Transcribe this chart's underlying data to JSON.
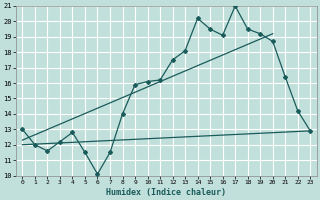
{
  "title": "",
  "xlabel": "Humidex (Indice chaleur)",
  "xlim": [
    -0.5,
    23.5
  ],
  "ylim": [
    10,
    21
  ],
  "xticks": [
    0,
    1,
    2,
    3,
    4,
    5,
    6,
    7,
    8,
    9,
    10,
    11,
    12,
    13,
    14,
    15,
    16,
    17,
    18,
    19,
    20,
    21,
    22,
    23
  ],
  "yticks": [
    10,
    11,
    12,
    13,
    14,
    15,
    16,
    17,
    18,
    19,
    20,
    21
  ],
  "bg_color": "#c2e0db",
  "grid_color": "#ffffff",
  "line_color": "#1a5c5c",
  "series1_x": [
    0,
    1,
    2,
    3,
    4,
    5,
    6,
    7,
    8,
    9,
    10,
    11,
    12,
    13,
    14,
    15,
    16,
    17,
    18,
    19,
    20,
    21,
    22,
    23
  ],
  "series1_y": [
    13.0,
    12.0,
    11.6,
    12.2,
    12.8,
    11.5,
    10.1,
    11.5,
    14.0,
    15.9,
    16.1,
    16.2,
    17.5,
    18.1,
    20.2,
    19.5,
    19.1,
    21.0,
    19.5,
    19.2,
    18.7,
    16.4,
    14.2,
    12.9
  ],
  "series2_x": [
    0,
    23
  ],
  "series2_y": [
    12.0,
    12.9
  ],
  "series3_x": [
    0,
    20
  ],
  "series3_y": [
    12.3,
    19.2
  ]
}
